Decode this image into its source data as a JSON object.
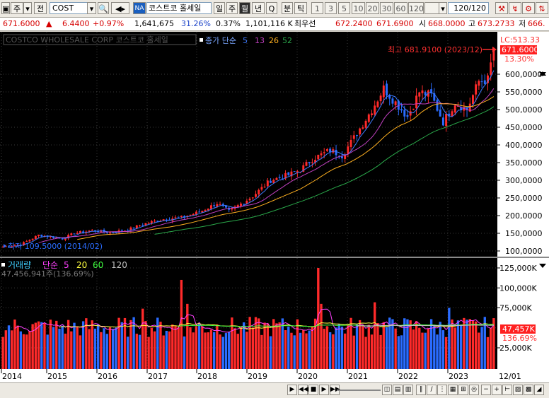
{
  "toolbar": {
    "period_label": "주",
    "mode_label": "전",
    "code": "COST",
    "name_prefix": "NA",
    "stock_name": "코스트코 홀세일",
    "period_buttons": [
      "일",
      "주",
      "월",
      "년",
      "Q"
    ],
    "selected_period": "월",
    "tick_buttons": [
      "분",
      "틱"
    ],
    "intervals": [
      "1",
      "3",
      "5",
      "10",
      "20",
      "30",
      "60",
      "120"
    ],
    "count": "120/120"
  },
  "quote": {
    "price": "671.6000",
    "arrow": "▲",
    "change": "6.4400",
    "change_pct": "+0.97%",
    "volume": "1,641,675",
    "vol_ratio": "31.26%",
    "turnover_pct": "0.37%",
    "amount": "1,101,116 K",
    "best_label": "최우선",
    "ask": "672.2400",
    "bid": "671.6900",
    "open_label": "시",
    "open": "668.0000",
    "high_label": "고",
    "high": "673.2733",
    "low_label": "저",
    "low": "666."
  },
  "price_panel": {
    "title": "COSTCO WHOLESALE CORP  코스트코 홀세일",
    "ma_label": "종가 단순",
    "ma_periods": [
      "5",
      "13",
      "26",
      "52"
    ],
    "ma_colors": [
      "#3d7bff",
      "#c040c0",
      "#ffb020",
      "#2aa84a"
    ],
    "lc_label": "LC:513.33",
    "current_label": "671.6000",
    "pct_label": "13.30%",
    "high_annotation": "최고 681.9100 (2023/12)",
    "low_annotation": "최저 109.5000 (2014/02)"
  },
  "volume_panel": {
    "title": "거래량",
    "ma_label": "단순",
    "ma_periods": [
      "5",
      "20",
      "60",
      "120"
    ],
    "ma_colors": [
      "#ff40ff",
      "#ffff40",
      "#40ff40",
      "#c0c0c0"
    ],
    "info": "47,456,941주(136.69%)",
    "current_label": "47,457K",
    "pct_label": "136.69%"
  },
  "x_axis": {
    "years": [
      "2014",
      "2015",
      "2016",
      "2017",
      "2018",
      "2019",
      "2020",
      "2021",
      "2022",
      "2023"
    ],
    "current": "12/01"
  },
  "colors": {
    "up": "#ff2a2a",
    "down": "#2a6cff",
    "background": "#000000",
    "grid": "#3a3a3a"
  },
  "chart_data": {
    "type": "candlestick",
    "price_axis": {
      "ticks": [
        100,
        150,
        200,
        250,
        300,
        350,
        400,
        450,
        500,
        550,
        600
      ],
      "labels": [
        "100,0000",
        "150,0000",
        "200,0000",
        "250,0000",
        "300,0000",
        "350,0000",
        "400,0000",
        "450,0000",
        "500,0000",
        "550,0000",
        "600,0000"
      ]
    },
    "volume_axis": {
      "ticks": [
        25,
        50,
        75,
        100,
        125
      ],
      "labels": [
        "25,000K",
        "50,000K",
        "75,000K",
        "100,000K",
        "125,000K"
      ]
    },
    "anchors": [
      {
        "t": 0,
        "c": 112
      },
      {
        "t": 6,
        "c": 118
      },
      {
        "t": 12,
        "c": 145
      },
      {
        "t": 20,
        "c": 135
      },
      {
        "t": 24,
        "c": 150
      },
      {
        "t": 30,
        "c": 158
      },
      {
        "t": 36,
        "c": 152
      },
      {
        "t": 42,
        "c": 160
      },
      {
        "t": 48,
        "c": 178
      },
      {
        "t": 54,
        "c": 190
      },
      {
        "t": 60,
        "c": 195
      },
      {
        "t": 66,
        "c": 210
      },
      {
        "t": 72,
        "c": 235
      },
      {
        "t": 76,
        "c": 212
      },
      {
        "t": 84,
        "c": 255
      },
      {
        "t": 90,
        "c": 300
      },
      {
        "t": 96,
        "c": 315
      },
      {
        "t": 100,
        "c": 330
      },
      {
        "t": 104,
        "c": 360
      },
      {
        "t": 110,
        "c": 385
      },
      {
        "t": 114,
        "c": 370
      },
      {
        "t": 118,
        "c": 420
      },
      {
        "t": 124,
        "c": 500
      },
      {
        "t": 128,
        "c": 560
      },
      {
        "t": 132,
        "c": 520
      },
      {
        "t": 136,
        "c": 480
      },
      {
        "t": 140,
        "c": 550
      },
      {
        "t": 144,
        "c": 540
      },
      {
        "t": 148,
        "c": 465
      },
      {
        "t": 152,
        "c": 520
      },
      {
        "t": 156,
        "c": 500
      },
      {
        "t": 160,
        "c": 580
      },
      {
        "t": 163,
        "c": 585
      },
      {
        "t": 165,
        "c": 671.6
      }
    ]
  }
}
